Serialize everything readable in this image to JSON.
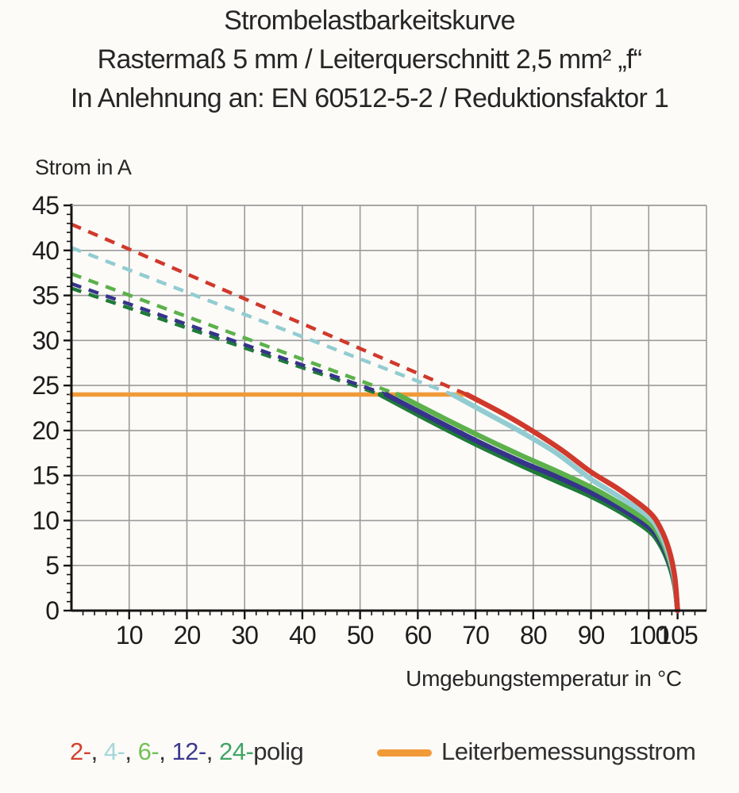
{
  "title": {
    "line1": "Strombelastbarkeitskurve",
    "line2": "Rastermaß 5 mm / Leiterquerschnitt 2,5 mm² „f“",
    "line3": "In Anlehnung an: EN 60512-5-2 / Reduktionsfaktor 1"
  },
  "chart_data": {
    "type": "line",
    "title": "Strombelastbarkeitskurve",
    "xlabel": "Umgebungstemperatur in °C",
    "ylabel": "Strom in A",
    "xlim": [
      0,
      110
    ],
    "ylim": [
      0,
      45
    ],
    "x_major_ticks": [
      10,
      20,
      30,
      40,
      50,
      60,
      70,
      80,
      90,
      100,
      105
    ],
    "y_major_ticks": [
      0,
      5,
      10,
      15,
      20,
      25,
      30,
      35,
      40,
      45
    ],
    "x_minor_step": 2,
    "y_minor_step": 1,
    "grid": true,
    "colors": {
      "grid": "#9b9b9b",
      "axis": "#141414",
      "tick_text": "#1d1d1d"
    },
    "rated_current_line": {
      "label": "Leiterbemessungsstrom",
      "value": 24,
      "x_start": 0,
      "x_end": 68.5,
      "color": "#f19a38"
    },
    "series": [
      {
        "name": "24-polig",
        "color": "#1f7a38",
        "dashed": [
          [
            0,
            35.8
          ],
          [
            53.5,
            24
          ]
        ],
        "solid": [
          [
            53.5,
            24
          ],
          [
            62,
            21.1
          ],
          [
            70,
            18.5
          ],
          [
            78,
            16.1
          ],
          [
            84,
            14.4
          ],
          [
            90,
            12.7
          ],
          [
            95,
            11.0
          ],
          [
            100,
            8.9
          ],
          [
            102,
            7.3
          ],
          [
            103.5,
            5.2
          ],
          [
            104.5,
            2.8
          ],
          [
            105,
            0
          ]
        ]
      },
      {
        "name": "12-polig",
        "color": "#36348a",
        "dashed": [
          [
            0,
            36.3
          ],
          [
            54.5,
            24
          ]
        ],
        "solid": [
          [
            54.5,
            24
          ],
          [
            62,
            21.5
          ],
          [
            70,
            18.9
          ],
          [
            78,
            16.5
          ],
          [
            84,
            14.9
          ],
          [
            90,
            13.1
          ],
          [
            95,
            11.4
          ],
          [
            100,
            9.3
          ],
          [
            102,
            7.7
          ],
          [
            103.5,
            5.5
          ],
          [
            104.5,
            3.0
          ],
          [
            105,
            0
          ]
        ]
      },
      {
        "name": "6-polig",
        "color": "#5cb14b",
        "dashed": [
          [
            0,
            37.4
          ],
          [
            56.5,
            24
          ]
        ],
        "solid": [
          [
            56.5,
            24
          ],
          [
            65,
            21.2
          ],
          [
            72,
            19.0
          ],
          [
            78,
            17.2
          ],
          [
            84,
            15.5
          ],
          [
            90,
            13.7
          ],
          [
            95,
            11.9
          ],
          [
            100,
            9.8
          ],
          [
            102,
            8.1
          ],
          [
            103.5,
            5.8
          ],
          [
            104.5,
            3.2
          ],
          [
            105,
            0
          ]
        ]
      },
      {
        "name": "4-polig",
        "color": "#92ccd1",
        "dashed": [
          [
            0,
            40.3
          ],
          [
            66,
            24
          ]
        ],
        "solid": [
          [
            66,
            24
          ],
          [
            72,
            21.9
          ],
          [
            78,
            19.8
          ],
          [
            84,
            17.5
          ],
          [
            90,
            14.6
          ],
          [
            95,
            12.6
          ],
          [
            100,
            10.4
          ],
          [
            102,
            8.6
          ],
          [
            103.5,
            6.2
          ],
          [
            104.5,
            3.4
          ],
          [
            105,
            0
          ]
        ]
      },
      {
        "name": "2-polig",
        "color": "#d0392b",
        "dashed": [
          [
            0,
            42.9
          ],
          [
            68.5,
            24
          ]
        ],
        "solid": [
          [
            68.5,
            24
          ],
          [
            75,
            21.8
          ],
          [
            80,
            19.9
          ],
          [
            85,
            17.8
          ],
          [
            90,
            15.4
          ],
          [
            95,
            13.4
          ],
          [
            100,
            11.0
          ],
          [
            102,
            9.2
          ],
          [
            103.5,
            6.8
          ],
          [
            104.5,
            3.8
          ],
          [
            105,
            0
          ]
        ]
      }
    ]
  },
  "legend": {
    "parts": [
      {
        "text": "2-",
        "color": "#d4402f"
      },
      {
        "text": ", ",
        "color": "#2f2f2f"
      },
      {
        "text": "4-",
        "color": "#a5d7d8"
      },
      {
        "text": ", ",
        "color": "#2f2f2f"
      },
      {
        "text": "6-",
        "color": "#72c158"
      },
      {
        "text": ", ",
        "color": "#2f2f2f"
      },
      {
        "text": "12-",
        "color": "#3b3a8e"
      },
      {
        "text": ", ",
        "color": "#2f2f2f"
      },
      {
        "text": "24-",
        "color": "#3fa565"
      },
      {
        "text": "polig",
        "color": "#2f2f2f"
      }
    ]
  }
}
